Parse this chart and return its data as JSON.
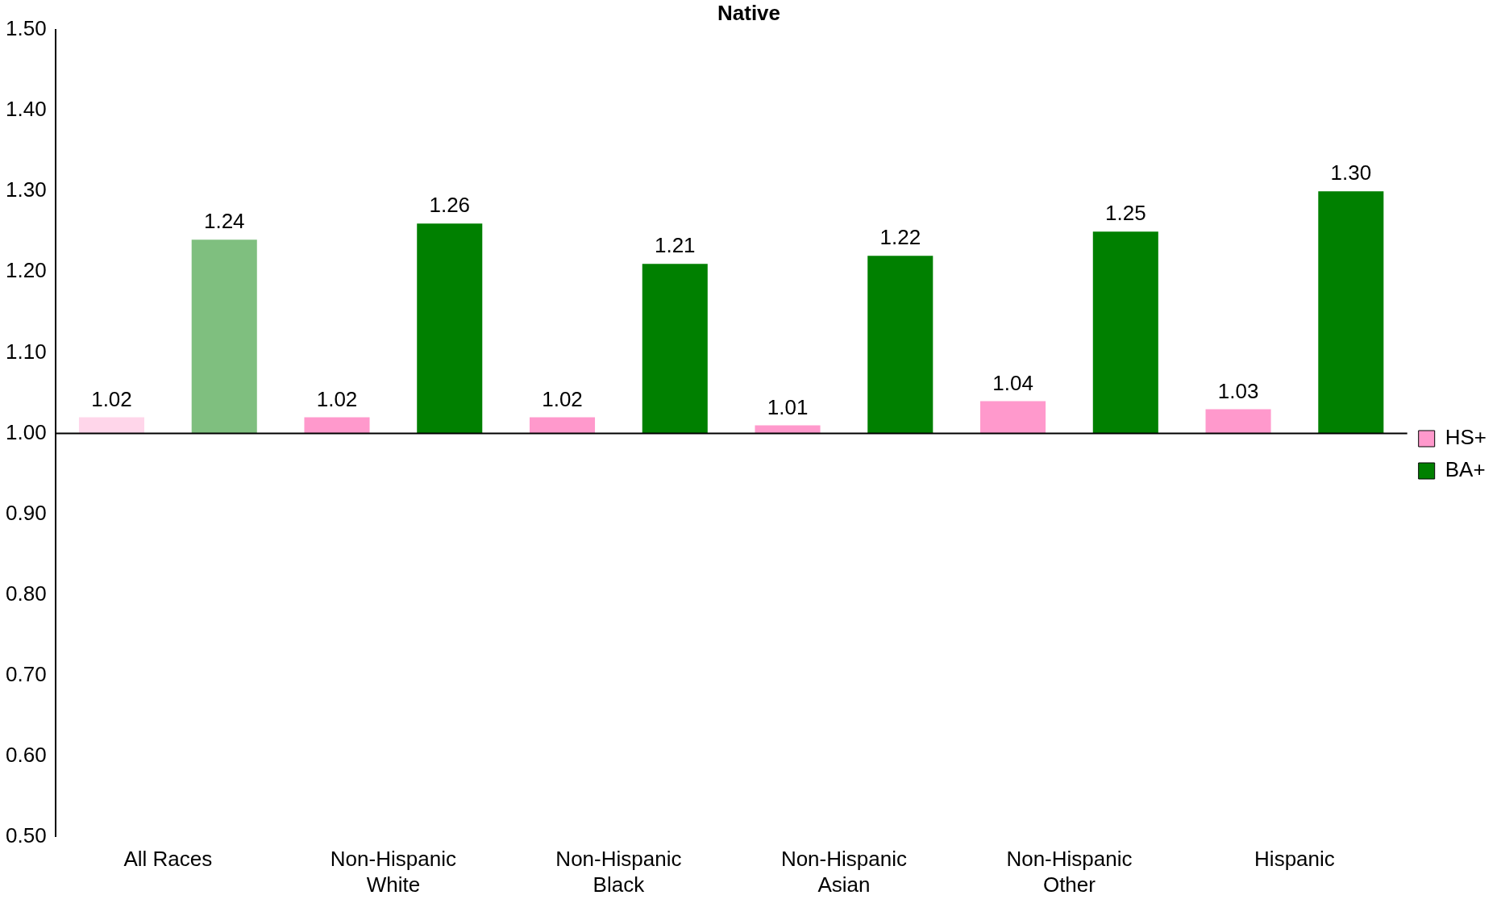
{
  "chart_data": {
    "type": "bar",
    "title": "Native",
    "categories": [
      "All Races",
      "Non-Hispanic White",
      "Non-Hispanic Black",
      "Non-Hispanic Asian",
      "Non-Hispanic Other",
      "Hispanic"
    ],
    "series": [
      {
        "name": "HS+",
        "color": "#ff99cc",
        "base": [
          1,
          1,
          1,
          1,
          1,
          1
        ],
        "colors": [
          "#ffd6ea",
          "#ff99cc",
          "#ff99cc",
          "#ff99cc",
          "#ff99cc",
          "#ff99cc"
        ],
        "values": [
          0.02,
          0.02,
          0.02,
          0.01,
          0.04,
          0.03
        ],
        "value_labels": [
          "1.02",
          "1.02",
          "1.02",
          "1.01",
          "1.04",
          "1.03"
        ]
      },
      {
        "name": "BA+",
        "color": "#008000",
        "base": [
          1,
          1,
          1,
          1,
          1,
          1
        ],
        "colors": [
          "#7fbf7f",
          "#008000",
          "#008000",
          "#008000",
          "#008000",
          "#008000"
        ],
        "values": [
          0.24,
          0.26,
          0.21,
          0.22,
          0.25,
          0.3
        ],
        "value_labels": [
          "1.24",
          "1.26",
          "1.21",
          "1.22",
          "1.25",
          "1.30"
        ]
      }
    ],
    "ylim": [
      0.5,
      1.5
    ],
    "yticks": [
      {
        "value": 0.5,
        "label": "0.50"
      },
      {
        "value": 0.6,
        "label": "0.60"
      },
      {
        "value": 0.7,
        "label": "0.70"
      },
      {
        "value": 0.8,
        "label": "0.80"
      },
      {
        "value": 0.9,
        "label": "0.90"
      },
      {
        "value": 1.0,
        "label": "1.00"
      },
      {
        "value": 1.1,
        "label": "1.10"
      },
      {
        "value": 1.2,
        "label": "1.20"
      },
      {
        "value": 1.3,
        "label": "1.30"
      },
      {
        "value": 1.4,
        "label": "1.40"
      },
      {
        "value": 1.5,
        "label": "1.50"
      }
    ],
    "ref_lines": [
      {
        "axis": "y",
        "value": 1.0
      }
    ],
    "grid": false,
    "legend": "right"
  }
}
